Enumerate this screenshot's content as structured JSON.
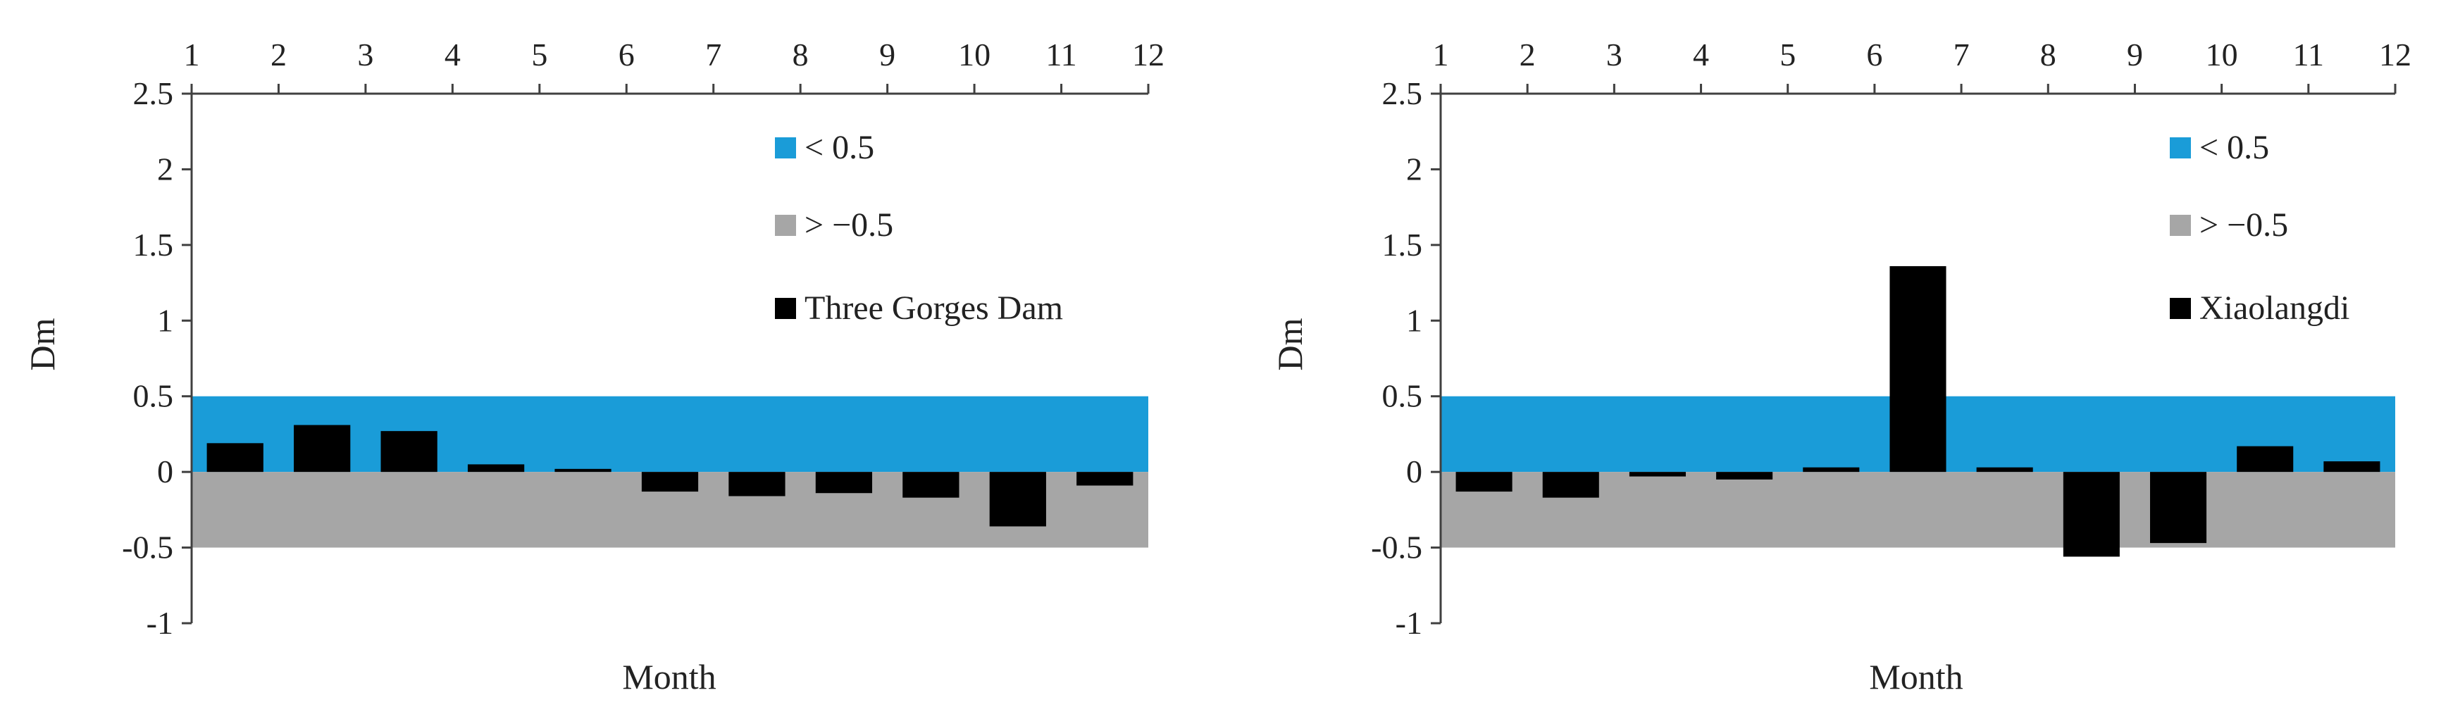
{
  "chart_data": [
    {
      "type": "bar",
      "title": "",
      "xlabel": "Month",
      "ylabel": "Dm",
      "x_ticks": [
        "1",
        "2",
        "3",
        "4",
        "5",
        "6",
        "7",
        "8",
        "9",
        "10",
        "11",
        "12"
      ],
      "x_axis_position": "top",
      "ylim": [
        -1,
        2.5
      ],
      "y_ticks": [
        "2.5",
        "2",
        "1.5",
        "1",
        "0.5",
        "0",
        "-0.5",
        "-1"
      ],
      "bands": [
        {
          "name": "< 0.5",
          "from": 0,
          "to": 0.5,
          "color": "#1a9cd8"
        },
        {
          "name": "> −0.5",
          "from": -0.5,
          "to": 0,
          "color": "#a6a6a6"
        }
      ],
      "series": [
        {
          "name": "Three Gorges Dam",
          "color": "#000000",
          "x": [
            1,
            2,
            3,
            4,
            5,
            6,
            7,
            8,
            9,
            10,
            11
          ],
          "values": [
            0.19,
            0.31,
            0.27,
            0.05,
            0.02,
            -0.13,
            -0.16,
            -0.14,
            -0.17,
            -0.36,
            -0.09
          ]
        }
      ],
      "legend": {
        "position": "top-right",
        "entries": [
          "< 0.5",
          "> −0.5",
          "Three Gorges Dam"
        ]
      },
      "grid": false
    },
    {
      "type": "bar",
      "title": "",
      "xlabel": "Month",
      "ylabel": "Dm",
      "x_ticks": [
        "1",
        "2",
        "3",
        "4",
        "5",
        "6",
        "7",
        "8",
        "9",
        "10",
        "11",
        "12"
      ],
      "x_axis_position": "top",
      "ylim": [
        -1,
        2.5
      ],
      "y_ticks": [
        "2.5",
        "2",
        "1.5",
        "1",
        "0.5",
        "0",
        "-0.5",
        "-1"
      ],
      "bands": [
        {
          "name": "< 0.5",
          "from": 0,
          "to": 0.5,
          "color": "#1a9cd8"
        },
        {
          "name": "> −0.5",
          "from": -0.5,
          "to": 0,
          "color": "#a6a6a6"
        }
      ],
      "series": [
        {
          "name": "Xiaolangdi",
          "color": "#000000",
          "x": [
            1,
            2,
            3,
            4,
            5,
            6,
            7,
            8,
            9,
            10,
            11
          ],
          "values": [
            -0.13,
            -0.17,
            -0.03,
            -0.05,
            0.03,
            1.36,
            0.03,
            -0.56,
            -0.47,
            0.17,
            0.07
          ]
        }
      ],
      "legend": {
        "position": "top-right",
        "entries": [
          "< 0.5",
          "> −0.5",
          "Xiaolangdi"
        ]
      },
      "grid": false
    }
  ]
}
